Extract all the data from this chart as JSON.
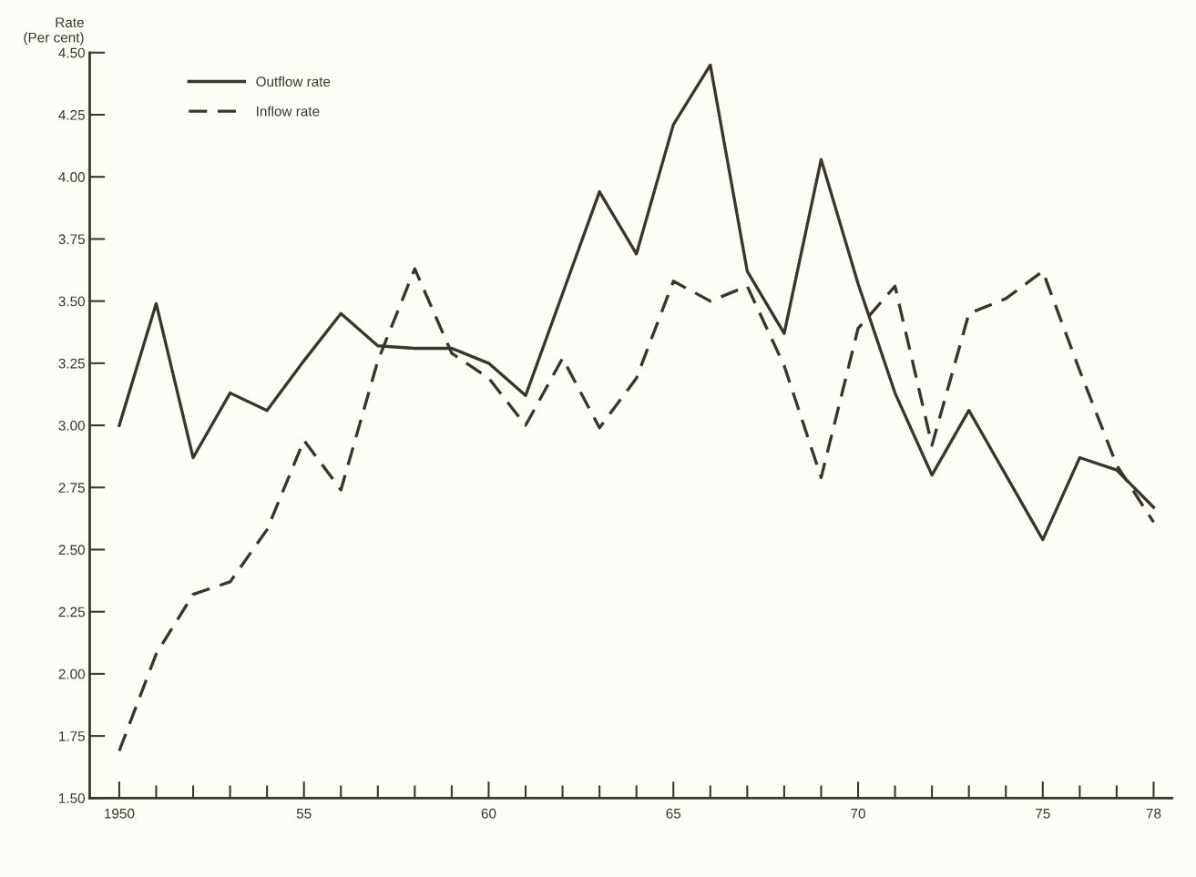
{
  "chart_data": {
    "type": "line",
    "ylabel": "Rate\n(Per cent)",
    "x": [
      1950,
      1951,
      1952,
      1953,
      1954,
      1955,
      1956,
      1957,
      1958,
      1959,
      1960,
      1961,
      1962,
      1963,
      1964,
      1965,
      1966,
      1967,
      1968,
      1969,
      1970,
      1971,
      1972,
      1973,
      1974,
      1975,
      1976,
      1977,
      1978
    ],
    "series": [
      {
        "name": "Outflow rate",
        "color": "#3a362b",
        "line_style": "solid",
        "values": [
          3.0,
          3.49,
          2.87,
          3.13,
          3.06,
          3.26,
          3.45,
          3.32,
          3.31,
          3.31,
          3.25,
          3.12,
          3.53,
          3.94,
          3.69,
          4.21,
          4.45,
          3.62,
          3.37,
          4.07,
          3.57,
          3.13,
          2.8,
          3.06,
          2.8,
          2.54,
          2.87,
          2.82,
          2.67
        ]
      },
      {
        "name": "Inflow rate",
        "color": "#3a362b",
        "line_style": "dashed",
        "values": [
          1.69,
          2.08,
          2.32,
          2.37,
          2.58,
          2.94,
          2.74,
          3.26,
          3.63,
          3.29,
          3.19,
          3.0,
          3.27,
          2.99,
          3.19,
          3.58,
          3.5,
          3.56,
          3.24,
          2.79,
          3.39,
          3.56,
          2.92,
          3.45,
          3.51,
          3.62,
          3.22,
          2.84,
          2.61
        ]
      }
    ],
    "xlim": [
      1949.2,
      1978.5
    ],
    "ylim": [
      1.5,
      4.5
    ],
    "xticks": [
      {
        "value": 1950,
        "label": "1950"
      },
      {
        "value": 1951,
        "label": null
      },
      {
        "value": 1952,
        "label": null
      },
      {
        "value": 1953,
        "label": null
      },
      {
        "value": 1954,
        "label": null
      },
      {
        "value": 1955,
        "label": "55"
      },
      {
        "value": 1956,
        "label": null
      },
      {
        "value": 1957,
        "label": null
      },
      {
        "value": 1958,
        "label": null
      },
      {
        "value": 1959,
        "label": null
      },
      {
        "value": 1960,
        "label": "60"
      },
      {
        "value": 1961,
        "label": null
      },
      {
        "value": 1962,
        "label": null
      },
      {
        "value": 1963,
        "label": null
      },
      {
        "value": 1964,
        "label": null
      },
      {
        "value": 1965,
        "label": "65"
      },
      {
        "value": 1966,
        "label": null
      },
      {
        "value": 1967,
        "label": null
      },
      {
        "value": 1968,
        "label": null
      },
      {
        "value": 1969,
        "label": null
      },
      {
        "value": 1970,
        "label": "70"
      },
      {
        "value": 1971,
        "label": null
      },
      {
        "value": 1972,
        "label": null
      },
      {
        "value": 1973,
        "label": null
      },
      {
        "value": 1974,
        "label": null
      },
      {
        "value": 1975,
        "label": "75"
      },
      {
        "value": 1976,
        "label": null
      },
      {
        "value": 1977,
        "label": null
      },
      {
        "value": 1978,
        "label": "78"
      }
    ],
    "yticks": [
      {
        "value": 1.5,
        "label": "1.50"
      },
      {
        "value": 1.75,
        "label": "1.75"
      },
      {
        "value": 2.0,
        "label": "2.00"
      },
      {
        "value": 2.25,
        "label": "2.25"
      },
      {
        "value": 2.5,
        "label": "2.50"
      },
      {
        "value": 2.75,
        "label": "2.75"
      },
      {
        "value": 3.0,
        "label": "3.00"
      },
      {
        "value": 3.25,
        "label": "3.25"
      },
      {
        "value": 3.5,
        "label": "3.50"
      },
      {
        "value": 3.75,
        "label": "3.75"
      },
      {
        "value": 4.0,
        "label": "4.00"
      },
      {
        "value": 4.25,
        "label": "4.25"
      },
      {
        "value": 4.5,
        "label": "4.50"
      }
    ],
    "grid": false,
    "legend": "top left",
    "marker": "none"
  }
}
